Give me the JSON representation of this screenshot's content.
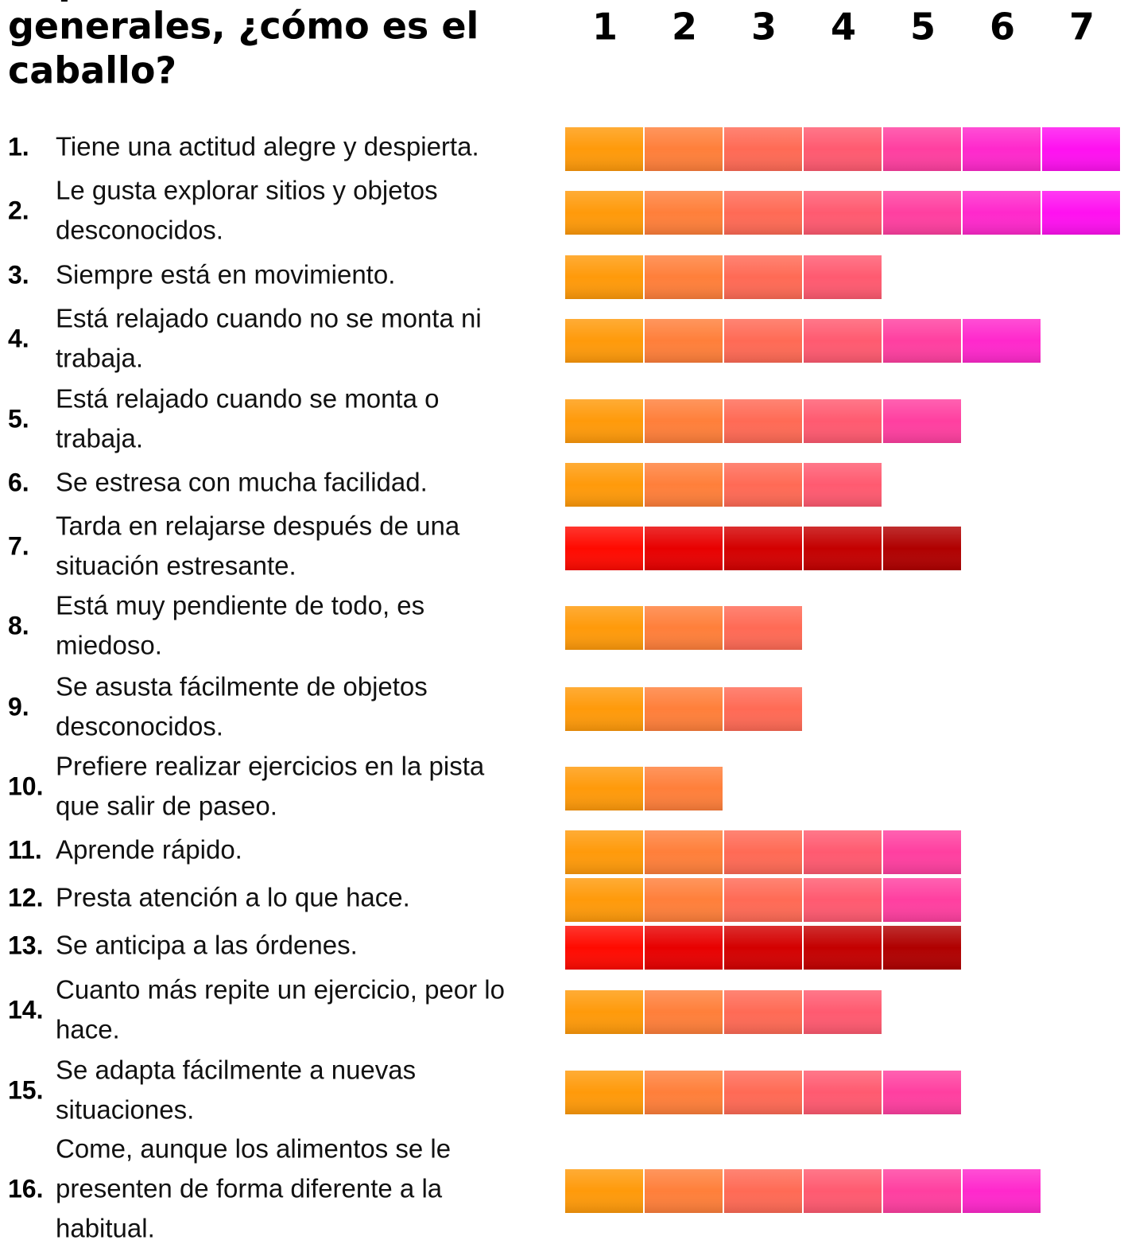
{
  "header": {
    "title": [
      "Aspectos",
      "generales, ¿cómo es el",
      "caballo?"
    ]
  },
  "scale": [
    1,
    2,
    3,
    4,
    5,
    6,
    7
  ],
  "palettes": {
    "normal": [
      "#ff9a0a",
      "#ff7f3a",
      "#ff6a55",
      "#ff5a70",
      "#ff3fa0",
      "#ff28cc",
      "#ff10f0"
    ],
    "alert": [
      "#ff0a00",
      "#e80000",
      "#d40000",
      "#c40000",
      "#b00000",
      "#9a0000",
      "#880000"
    ]
  },
  "items": [
    {
      "number": "1.",
      "lines": [
        "Tiene una actitud alegre y despierta."
      ],
      "rating": 7,
      "palette": "normal"
    },
    {
      "number": "2.",
      "lines": [
        "Le gusta explorar sitios y objetos",
        "desconocidos."
      ],
      "rating": 7,
      "palette": "normal"
    },
    {
      "number": "3.",
      "lines": [
        "Siempre está en movimiento."
      ],
      "rating": 4,
      "palette": "normal"
    },
    {
      "number": "4.",
      "lines": [
        "Está relajado cuando no se monta ni",
        "trabaja."
      ],
      "rating": 6,
      "palette": "normal"
    },
    {
      "number": "5.",
      "lines": [
        "Está relajado cuando se monta o",
        "trabaja."
      ],
      "rating": 5,
      "palette": "normal"
    },
    {
      "number": "6.",
      "lines": [
        "Se estresa con mucha facilidad."
      ],
      "rating": 4,
      "palette": "normal"
    },
    {
      "number": "7.",
      "lines": [
        "Tarda en relajarse después de una",
        "situación estresante."
      ],
      "rating": 5,
      "palette": "alert"
    },
    {
      "number": "8.",
      "lines": [
        "Está muy pendiente de todo, es",
        "miedoso."
      ],
      "rating": 3,
      "palette": "normal"
    },
    {
      "number": "9.",
      "lines": [
        "Se asusta fácilmente de objetos",
        "desconocidos."
      ],
      "rating": 3,
      "palette": "normal"
    },
    {
      "number": "10.",
      "lines": [
        "Prefiere realizar ejercicios en la pista",
        "que salir de paseo."
      ],
      "rating": 2,
      "palette": "normal"
    },
    {
      "number": "11.",
      "lines": [
        "Aprende rápido."
      ],
      "rating": 5,
      "palette": "normal"
    },
    {
      "number": "12.",
      "lines": [
        "Presta atención a lo que hace."
      ],
      "rating": 5,
      "palette": "normal"
    },
    {
      "number": "13.",
      "lines": [
        "Se anticipa a las órdenes."
      ],
      "rating": 5,
      "palette": "alert"
    },
    {
      "number": "14.",
      "lines": [
        "Cuanto más repite un ejercicio, peor lo",
        "hace."
      ],
      "rating": 4,
      "palette": "normal"
    },
    {
      "number": "15.",
      "lines": [
        "Se adapta fácilmente a nuevas",
        "situaciones."
      ],
      "rating": 5,
      "palette": "normal"
    },
    {
      "number": "16.",
      "lines": [
        "Come, aunque los alimentos se le",
        "presenten de forma diferente a la",
        "habitual."
      ],
      "rating": 6,
      "palette": "normal"
    }
  ]
}
